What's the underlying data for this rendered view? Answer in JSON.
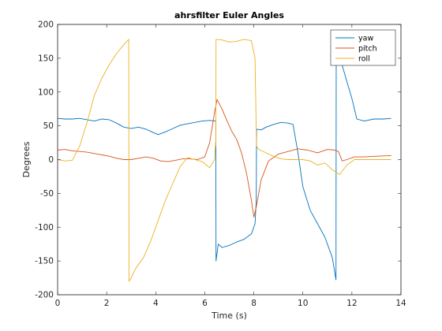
{
  "chart_data": {
    "type": "line",
    "title": "ahrsfilter Euler Angles",
    "xlabel": "Time (s)",
    "ylabel": "Degrees",
    "xlim": [
      0,
      14
    ],
    "ylim": [
      -200,
      200
    ],
    "xticks": [
      0,
      2,
      4,
      6,
      8,
      10,
      12,
      14
    ],
    "yticks": [
      -200,
      -150,
      -100,
      -50,
      0,
      50,
      100,
      150,
      200
    ],
    "grid": false,
    "legend_position": "top-right",
    "series": [
      {
        "name": "yaw",
        "color": "#0072BD",
        "x": [
          0,
          0.3,
          0.6,
          0.9,
          1.2,
          1.5,
          1.8,
          2.1,
          2.4,
          2.7,
          3.0,
          3.3,
          3.6,
          3.9,
          4.1,
          4.4,
          4.7,
          5.0,
          5.3,
          5.6,
          5.9,
          6.2,
          6.45,
          6.46,
          6.55,
          6.7,
          7.0,
          7.3,
          7.6,
          7.9,
          8.05,
          8.1,
          8.11,
          8.3,
          8.5,
          8.8,
          9.1,
          9.4,
          9.6,
          9.8,
          10.0,
          10.3,
          10.6,
          10.9,
          11.2,
          11.35,
          11.36,
          11.45,
          11.6,
          11.8,
          12.0,
          12.2,
          12.5,
          12.9,
          13.3,
          13.6
        ],
        "y": [
          61,
          60,
          60,
          61,
          59,
          57,
          60,
          59,
          54,
          48,
          46,
          48,
          45,
          40,
          37,
          41,
          46,
          51,
          53,
          55,
          57,
          58,
          57,
          -150,
          -125,
          -130,
          -127,
          -122,
          -118,
          -110,
          -95,
          -60,
          45,
          44,
          48,
          52,
          55,
          54,
          52,
          10,
          -40,
          -75,
          -95,
          -115,
          -145,
          -178,
          179,
          165,
          140,
          115,
          90,
          60,
          57,
          60,
          60,
          61
        ]
      },
      {
        "name": "pitch",
        "color": "#D95319",
        "x": [
          0,
          0.3,
          0.6,
          0.9,
          1.2,
          1.5,
          1.8,
          2.1,
          2.4,
          2.7,
          3.0,
          3.3,
          3.6,
          3.9,
          4.2,
          4.5,
          4.8,
          5.1,
          5.4,
          5.7,
          6.0,
          6.2,
          6.4,
          6.5,
          6.7,
          6.9,
          7.1,
          7.3,
          7.5,
          7.7,
          7.9,
          8.0,
          8.1,
          8.3,
          8.6,
          9.0,
          9.4,
          9.8,
          10.2,
          10.6,
          11.0,
          11.3,
          11.45,
          11.6,
          11.8,
          12.1,
          12.5,
          13.0,
          13.6
        ],
        "y": [
          14,
          15,
          13,
          12,
          11,
          9,
          7,
          5,
          2,
          0,
          0,
          2,
          4,
          2,
          -2,
          -3,
          -1,
          1,
          1,
          0,
          4,
          25,
          70,
          89,
          75,
          58,
          42,
          30,
          10,
          -20,
          -60,
          -85,
          -70,
          -30,
          -2,
          8,
          12,
          16,
          14,
          10,
          15,
          14,
          12,
          -2,
          0,
          4,
          4,
          5,
          6
        ]
      },
      {
        "name": "roll",
        "color": "#EDB120",
        "x": [
          0,
          0.3,
          0.6,
          0.9,
          1.2,
          1.5,
          1.8,
          2.1,
          2.4,
          2.7,
          2.9,
          2.91,
          3.0,
          3.2,
          3.5,
          3.8,
          4.1,
          4.4,
          4.7,
          5.0,
          5.3,
          5.6,
          5.9,
          6.2,
          6.4,
          6.44,
          6.45,
          6.46,
          6.7,
          7.0,
          7.3,
          7.6,
          7.9,
          8.05,
          8.1,
          8.11,
          8.2,
          8.5,
          8.8,
          9.1,
          9.4,
          9.7,
          10.0,
          10.3,
          10.6,
          10.9,
          11.2,
          11.5,
          11.8,
          12.1,
          12.6,
          13.0,
          13.6
        ],
        "y": [
          0,
          -2,
          -1,
          20,
          55,
          95,
          120,
          140,
          157,
          170,
          178,
          -180,
          -175,
          -160,
          -145,
          -120,
          -90,
          -60,
          -35,
          -10,
          3,
          0,
          -3,
          -12,
          0,
          25,
          20,
          178,
          177,
          174,
          175,
          178,
          176,
          150,
          40,
          20,
          15,
          10,
          5,
          1,
          0,
          0,
          0,
          -2,
          -8,
          -5,
          -15,
          -22,
          -8,
          0,
          0,
          0,
          0
        ]
      }
    ]
  }
}
